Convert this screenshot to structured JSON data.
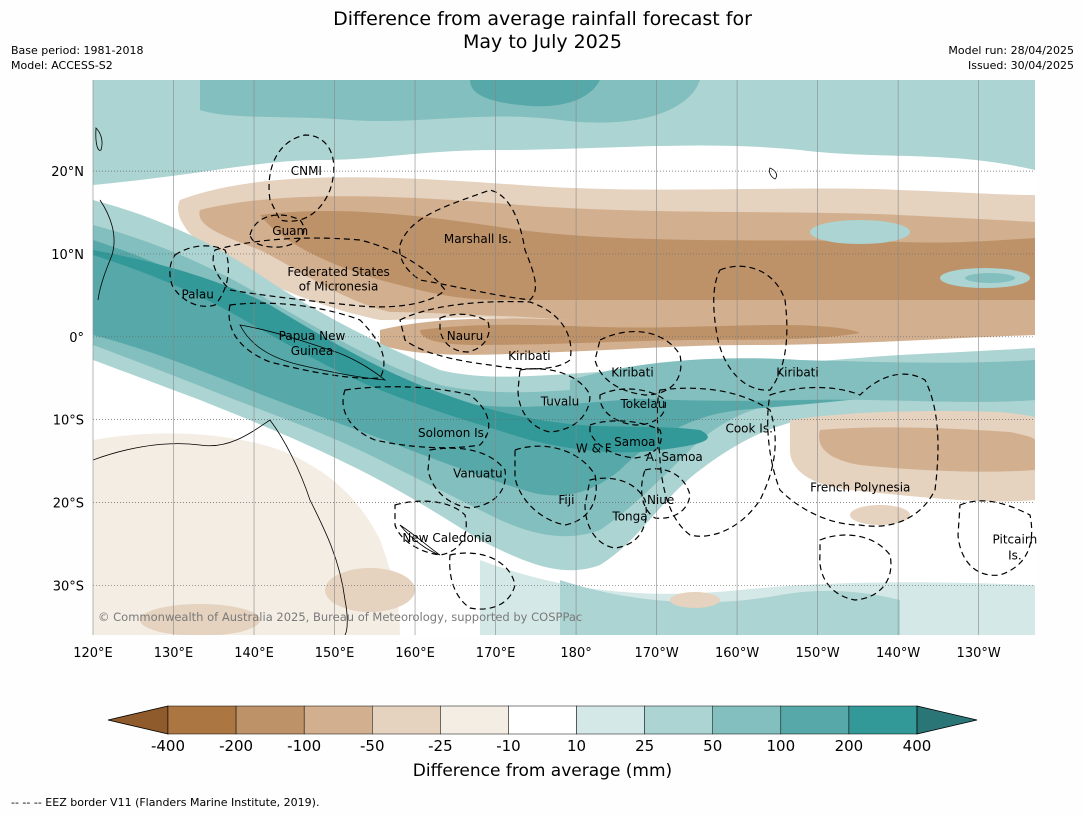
{
  "title": [
    "Difference from average rainfall forecast for",
    "May to July 2025"
  ],
  "meta_left": [
    "Base period: 1981-2018",
    "Model: ACCESS-S2"
  ],
  "meta_right": [
    "Model run: 28/04/2025",
    "Issued: 30/04/2025"
  ],
  "lat_ticks": [
    {
      "value": 20,
      "label": "20°N"
    },
    {
      "value": 10,
      "label": "10°N"
    },
    {
      "value": 0,
      "label": "0°"
    },
    {
      "value": -10,
      "label": "10°S"
    },
    {
      "value": -20,
      "label": "20°S"
    },
    {
      "value": -30,
      "label": "30°S"
    }
  ],
  "lon_ticks": [
    {
      "value": 120,
      "label": "120°E"
    },
    {
      "value": 130,
      "label": "130°E"
    },
    {
      "value": 140,
      "label": "140°E"
    },
    {
      "value": 150,
      "label": "150°E"
    },
    {
      "value": 160,
      "label": "160°E"
    },
    {
      "value": 170,
      "label": "170°E"
    },
    {
      "value": 180,
      "label": "180°"
    },
    {
      "value": 190,
      "label": "170°W"
    },
    {
      "value": 200,
      "label": "160°W"
    },
    {
      "value": 210,
      "label": "150°W"
    },
    {
      "value": 220,
      "label": "140°W"
    },
    {
      "value": 230,
      "label": "130°W"
    }
  ],
  "map_extent": {
    "lon": [
      120,
      237
    ],
    "lat": [
      -36,
      31
    ]
  },
  "places": [
    {
      "name": "CNMI",
      "lon": 146.5,
      "lat": 20
    },
    {
      "name": "Guam",
      "lon": 144.5,
      "lat": 12.8
    },
    {
      "name": "Marshall Is.",
      "lon": 167.8,
      "lat": 11.8
    },
    {
      "name": "Federated States",
      "lon": 150.5,
      "lat": 7.8
    },
    {
      "name": "of Micronesia",
      "lon": 150.5,
      "lat": 6.1
    },
    {
      "name": "Palau",
      "lon": 133,
      "lat": 5.1
    },
    {
      "name": "Nauru",
      "lon": 166.2,
      "lat": 0.1
    },
    {
      "name": "Papua New",
      "lon": 147.2,
      "lat": 0.1
    },
    {
      "name": "Guinea",
      "lon": 147.2,
      "lat": -1.7
    },
    {
      "name": "Kiribati",
      "lon": 174.2,
      "lat": -2.3
    },
    {
      "name": "Kiribati",
      "lon": 187,
      "lat": -4.3
    },
    {
      "name": "Kiribati",
      "lon": 207.5,
      "lat": -4.3
    },
    {
      "name": "Tuvalu",
      "lon": 178,
      "lat": -7.8
    },
    {
      "name": "Tokelau",
      "lon": 188.3,
      "lat": -8.1
    },
    {
      "name": "Cook Is.",
      "lon": 201.5,
      "lat": -11.1
    },
    {
      "name": "Solomon Is.",
      "lon": 164.7,
      "lat": -11.6
    },
    {
      "name": "W & F",
      "lon": 182.2,
      "lat": -13.5
    },
    {
      "name": "Samoa",
      "lon": 187.3,
      "lat": -12.7
    },
    {
      "name": "A. Samoa",
      "lon": 192.2,
      "lat": -14.5
    },
    {
      "name": "Vanuatu",
      "lon": 167.8,
      "lat": -16.5
    },
    {
      "name": "Fiji",
      "lon": 178.8,
      "lat": -19.7
    },
    {
      "name": "Niue",
      "lon": 190.5,
      "lat": -19.7
    },
    {
      "name": "French Polynesia",
      "lon": 215.3,
      "lat": -18.2
    },
    {
      "name": "Tonga",
      "lon": 186.7,
      "lat": -21.7
    },
    {
      "name": "New Caledonia",
      "lon": 164,
      "lat": -24.3
    },
    {
      "name": "Pitcairn",
      "lon": 234.5,
      "lat": -24.5
    },
    {
      "name": "Is.",
      "lon": 234.5,
      "lat": -26.4
    }
  ],
  "copyright": "© Commonwealth of Australia 2025, Bureau of Meteorology, supported by COSPPac",
  "colorbar": {
    "labels": [
      "-400",
      "-200",
      "-100",
      "-50",
      "-25",
      "-10",
      "10",
      "25",
      "50",
      "100",
      "200",
      "400"
    ],
    "colors": [
      "#8f5a2c",
      "#ab7642",
      "#be9269",
      "#d2af8e",
      "#e5d2bf",
      "#f3ede3",
      "#ffffff",
      "#d4e9e7",
      "#acd4d2",
      "#83bfbe",
      "#57a9a9",
      "#339998",
      "#2a7676"
    ],
    "label": "Difference from average (mm)"
  },
  "eez_note": "-- -- -- EEZ border V11 (Flanders Marine Institute, 2019)."
}
